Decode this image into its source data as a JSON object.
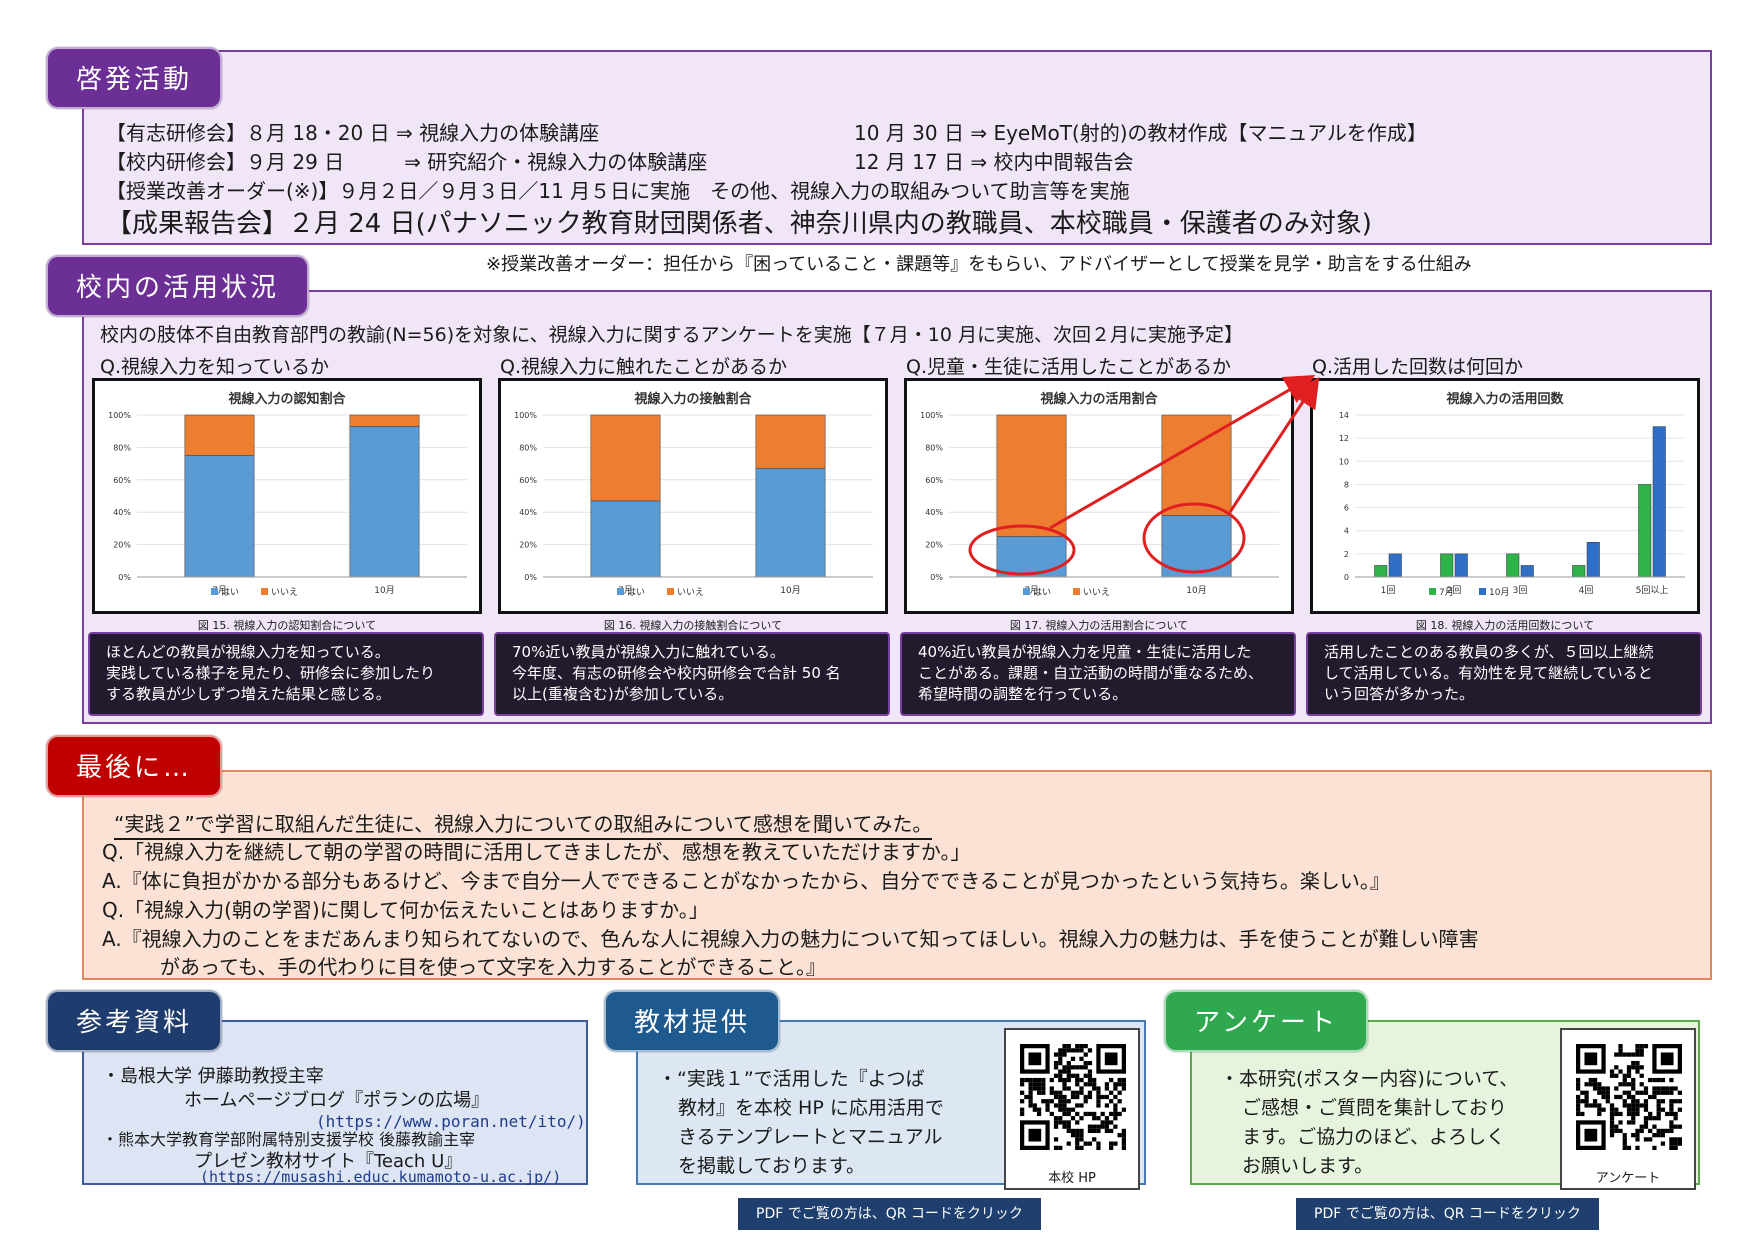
{
  "keihatsu": {
    "tab": "啓発活動",
    "row1_left": "【有志研修会】８月 18・20 日 ⇒ 視線入力の体験講座",
    "row1_right": "10 月 30 日 ⇒ EyeMoT(射的)の教材作成【マニュアルを作成】",
    "row2_left": "【校内研修会】９月 29 日　　　⇒ 研究紹介・視線入力の体験講座",
    "row2_right": "12 月 17 日 ⇒ 校内中間報告会",
    "row3": "【授業改善オーダー(※)】９月２日／９月３日／11 月５日に実施　その他、視線入力の取組みついて助言等を実施",
    "row4": "【成果報告会】２月 24 日(パナソニック教育財団関係者、神奈川県内の教職員、本校職員・保護者のみ対象)"
  },
  "footnote": "※授業改善オーダー：担任から『困っていること・課題等』をもらい、アドバイザーとして授業を見学・助言をする仕組み",
  "usage": {
    "tab": "校内の活用状況",
    "intro": "校内の肢体不自由教育部門の教諭(N=56)を対象に、視線入力に関するアンケートを実施【７月・10 月に実施、次回２月に実施予定】",
    "questions": [
      "Q.視線入力を知っているか",
      "Q.視線入力に触れたことがあるか",
      "Q.児童・生徒に活用したことがあるか",
      "Q.活用した回数は何回か"
    ],
    "captions": [
      "図 15. 視線入力の認知割合について",
      "図 16. 視線入力の接触割合について",
      "図 17. 視線入力の活用割合について",
      "図 18. 視線入力の活用回数について"
    ],
    "comments": [
      [
        "ほとんどの教員が視線入力を知っている。",
        "実践している様子を見たり、研修会に参加したり",
        "する教員が少しずつ増えた結果と感じる。"
      ],
      [
        "70%近い教員が視線入力に触れている。",
        "今年度、有志の研修会や校内研修会で合計 50 名",
        "以上(重複含む)が参加している。"
      ],
      [
        "40%近い教員が視線入力を児童・生徒に活用した",
        "ことがある。課題・自立活動の時間が重なるため、",
        "希望時間の調整を行っている。"
      ],
      [
        "活用したことのある教員の多くが、５回以上継続",
        "して活用している。有効性を見て継続していると",
        "いう回答が多かった。"
      ]
    ]
  },
  "chart_data": [
    {
      "type": "bar",
      "stacked": true,
      "title": "視線入力の認知割合",
      "categories": [
        "7月",
        "10月"
      ],
      "series": [
        {
          "name": "はい",
          "values": [
            75,
            93
          ]
        },
        {
          "name": "いいえ",
          "values": [
            25,
            7
          ]
        }
      ],
      "ylim": [
        0,
        100
      ],
      "yticks": [
        "100%",
        "80%",
        "60%",
        "40%",
        "20%",
        "0%"
      ],
      "colors": [
        "#5b9bd5",
        "#ed7d31"
      ],
      "legend": "bottom"
    },
    {
      "type": "bar",
      "stacked": true,
      "title": "視線入力の接触割合",
      "categories": [
        "7月",
        "10月"
      ],
      "series": [
        {
          "name": "はい",
          "values": [
            47,
            67
          ]
        },
        {
          "name": "いいえ",
          "values": [
            53,
            33
          ]
        }
      ],
      "ylim": [
        0,
        100
      ],
      "yticks": [
        "100%",
        "80%",
        "60%",
        "40%",
        "20%",
        "0%"
      ],
      "colors": [
        "#5b9bd5",
        "#ed7d31"
      ],
      "legend": "bottom"
    },
    {
      "type": "bar",
      "stacked": true,
      "title": "視線入力の活用割合",
      "categories": [
        "7月",
        "10月"
      ],
      "series": [
        {
          "name": "はい",
          "values": [
            25,
            38
          ]
        },
        {
          "name": "いいえ",
          "values": [
            75,
            62
          ]
        }
      ],
      "ylim": [
        0,
        100
      ],
      "yticks": [
        "100%",
        "80%",
        "60%",
        "40%",
        "20%",
        "0%"
      ],
      "colors": [
        "#5b9bd5",
        "#ed7d31"
      ],
      "legend": "bottom"
    },
    {
      "type": "bar",
      "title": "視線入力の活用回数",
      "categories": [
        "1回",
        "2回",
        "3回",
        "4回",
        "5回以上"
      ],
      "series": [
        {
          "name": "7月",
          "values": [
            1,
            2,
            2,
            1,
            8
          ]
        },
        {
          "name": "10月",
          "values": [
            2,
            2,
            1,
            3,
            13
          ]
        }
      ],
      "ylim": [
        0,
        14
      ],
      "yticks": [
        "14",
        "12",
        "10",
        "8",
        "6",
        "4",
        "2",
        "0"
      ],
      "colors": [
        "#2eb24a",
        "#2f6fc6"
      ],
      "legend": "bottom"
    }
  ],
  "last": {
    "tab": "最後に…",
    "lines": [
      "“実践２”で学習に取組んだ生徒に、視線入力についての取組みについて感想を聞いてみた。",
      "Q.「視線入力を継続して朝の学習の時間に活用してきましたが、感想を教えていただけますか。」",
      "A.『体に負担がかかる部分もあるけど、今まで自分一人でできることがなかったから、自分でできることが見つかったという気持ち。楽しい。』",
      "Q.「視線入力(朝の学習)に関して何か伝えたいことはありますか。」",
      "A.『視線入力のことをまだあんまり知られてないので、色んな人に視線入力の魅力について知ってほしい。視線入力の魅力は、手を使うことが難しい障害",
      "があっても、手の代わりに目を使って文字を入力することができること。』"
    ]
  },
  "ref": {
    "tab": "参考資料",
    "l1": "・島根大学 伊藤助教授主宰",
    "l2": "ホームページブログ『ポランの広場』",
    "l3": "(https://www.poran.net/ito/)",
    "l4": "・熊本大学教育学部附属特別支援学校 後藤教諭主宰",
    "l5": "プレゼン教材サイト『Teach U』",
    "l6": "(https://musashi.educ.kumamoto-u.ac.jp/)"
  },
  "material": {
    "tab": "教材提供",
    "lines": [
      "・“実践１”で活用した『よつば",
      "教材』を本校 HP に応用活用で",
      "きるテンプレートとマニュアル",
      "を掲載しております。"
    ],
    "qr_label": "本校 HP",
    "pdf": "PDF でご覧の方は、QR コードをクリック"
  },
  "enquete": {
    "tab": "アンケート",
    "lines": [
      "・本研究(ポスター内容)について、",
      "ご感想・ご質問を集計しており",
      "ます。ご協力のほど、よろしく",
      "お願いします。"
    ],
    "qr_label": "アンケート",
    "pdf": "PDF でご覧の方は、QR コードをクリック"
  }
}
